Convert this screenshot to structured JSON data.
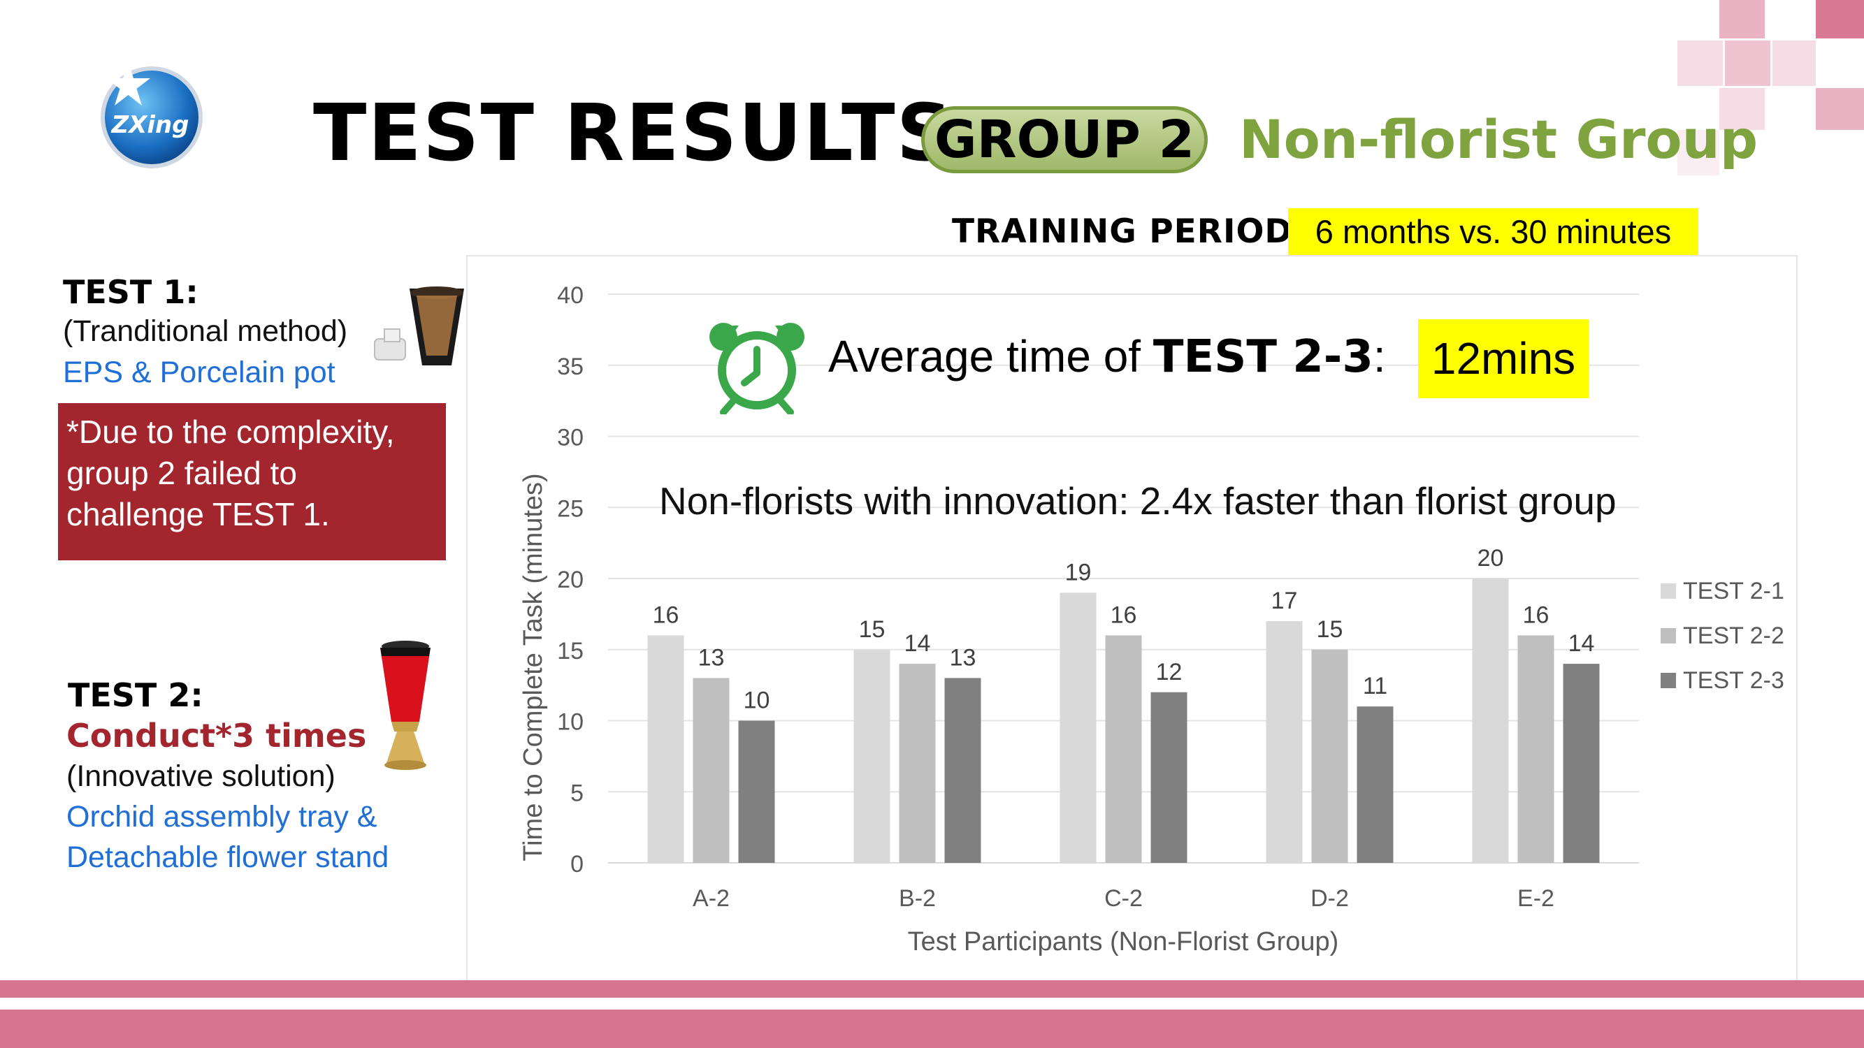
{
  "header": {
    "title": "TEST RESULTS",
    "group_badge": "GROUP 2",
    "group_name": "Non-florist Group",
    "logo_text": "ZXing",
    "training_label": "TRAINING PERIOD:",
    "training_value": "6 months vs. 30 minutes"
  },
  "left_panel": {
    "test1_title": "TEST 1:",
    "test1_method": "(Tranditional method)",
    "test1_desc": "EPS & Porcelain pot",
    "note": "*Due to the complexity, group 2 failed to challenge TEST 1.",
    "test2_title": "TEST 2:",
    "test2_conduct": "Conduct*3 times",
    "test2_method": "(Innovative solution)",
    "test2_desc_line1": "Orchid assembly tray &",
    "test2_desc_line2": "Detachable flower stand"
  },
  "highlight": {
    "prefix": "Average time of ",
    "bold": "TEST 2-3",
    "colon": ":",
    "value": "12mins"
  },
  "annotation": "Non-florists with innovation: 2.4x faster than florist group",
  "colors": {
    "title_green": "#7ea33f",
    "note_red": "#a3262f",
    "link_blue": "#1f6fd6",
    "highlight_yellow": "#ffff00",
    "band_pink": "#d7758f",
    "clock_green": "#3aa84a"
  },
  "icons": [
    "logo-icon",
    "alarm-clock-icon",
    "porcelain-pot-icon",
    "flower-stand-icon"
  ],
  "chart_data": {
    "type": "bar",
    "categories": [
      "A-2",
      "B-2",
      "C-2",
      "D-2",
      "E-2"
    ],
    "series": [
      {
        "name": "TEST 2-1",
        "values": [
          16,
          15,
          19,
          17,
          20
        ],
        "color": "#d9d9d9"
      },
      {
        "name": "TEST 2-2",
        "values": [
          13,
          14,
          16,
          15,
          16
        ],
        "color": "#bfbfbf"
      },
      {
        "name": "TEST 2-3",
        "values": [
          10,
          13,
          12,
          11,
          14
        ],
        "color": "#808080"
      }
    ],
    "title": "",
    "xlabel": "Test Participants (Non-Florist Group)",
    "ylabel": "Time to Complete Task (minutes)",
    "ylim": [
      0,
      40
    ],
    "yticks": [
      0,
      5,
      10,
      15,
      20,
      25,
      30,
      35,
      40
    ],
    "grid": true,
    "legend": "right"
  }
}
